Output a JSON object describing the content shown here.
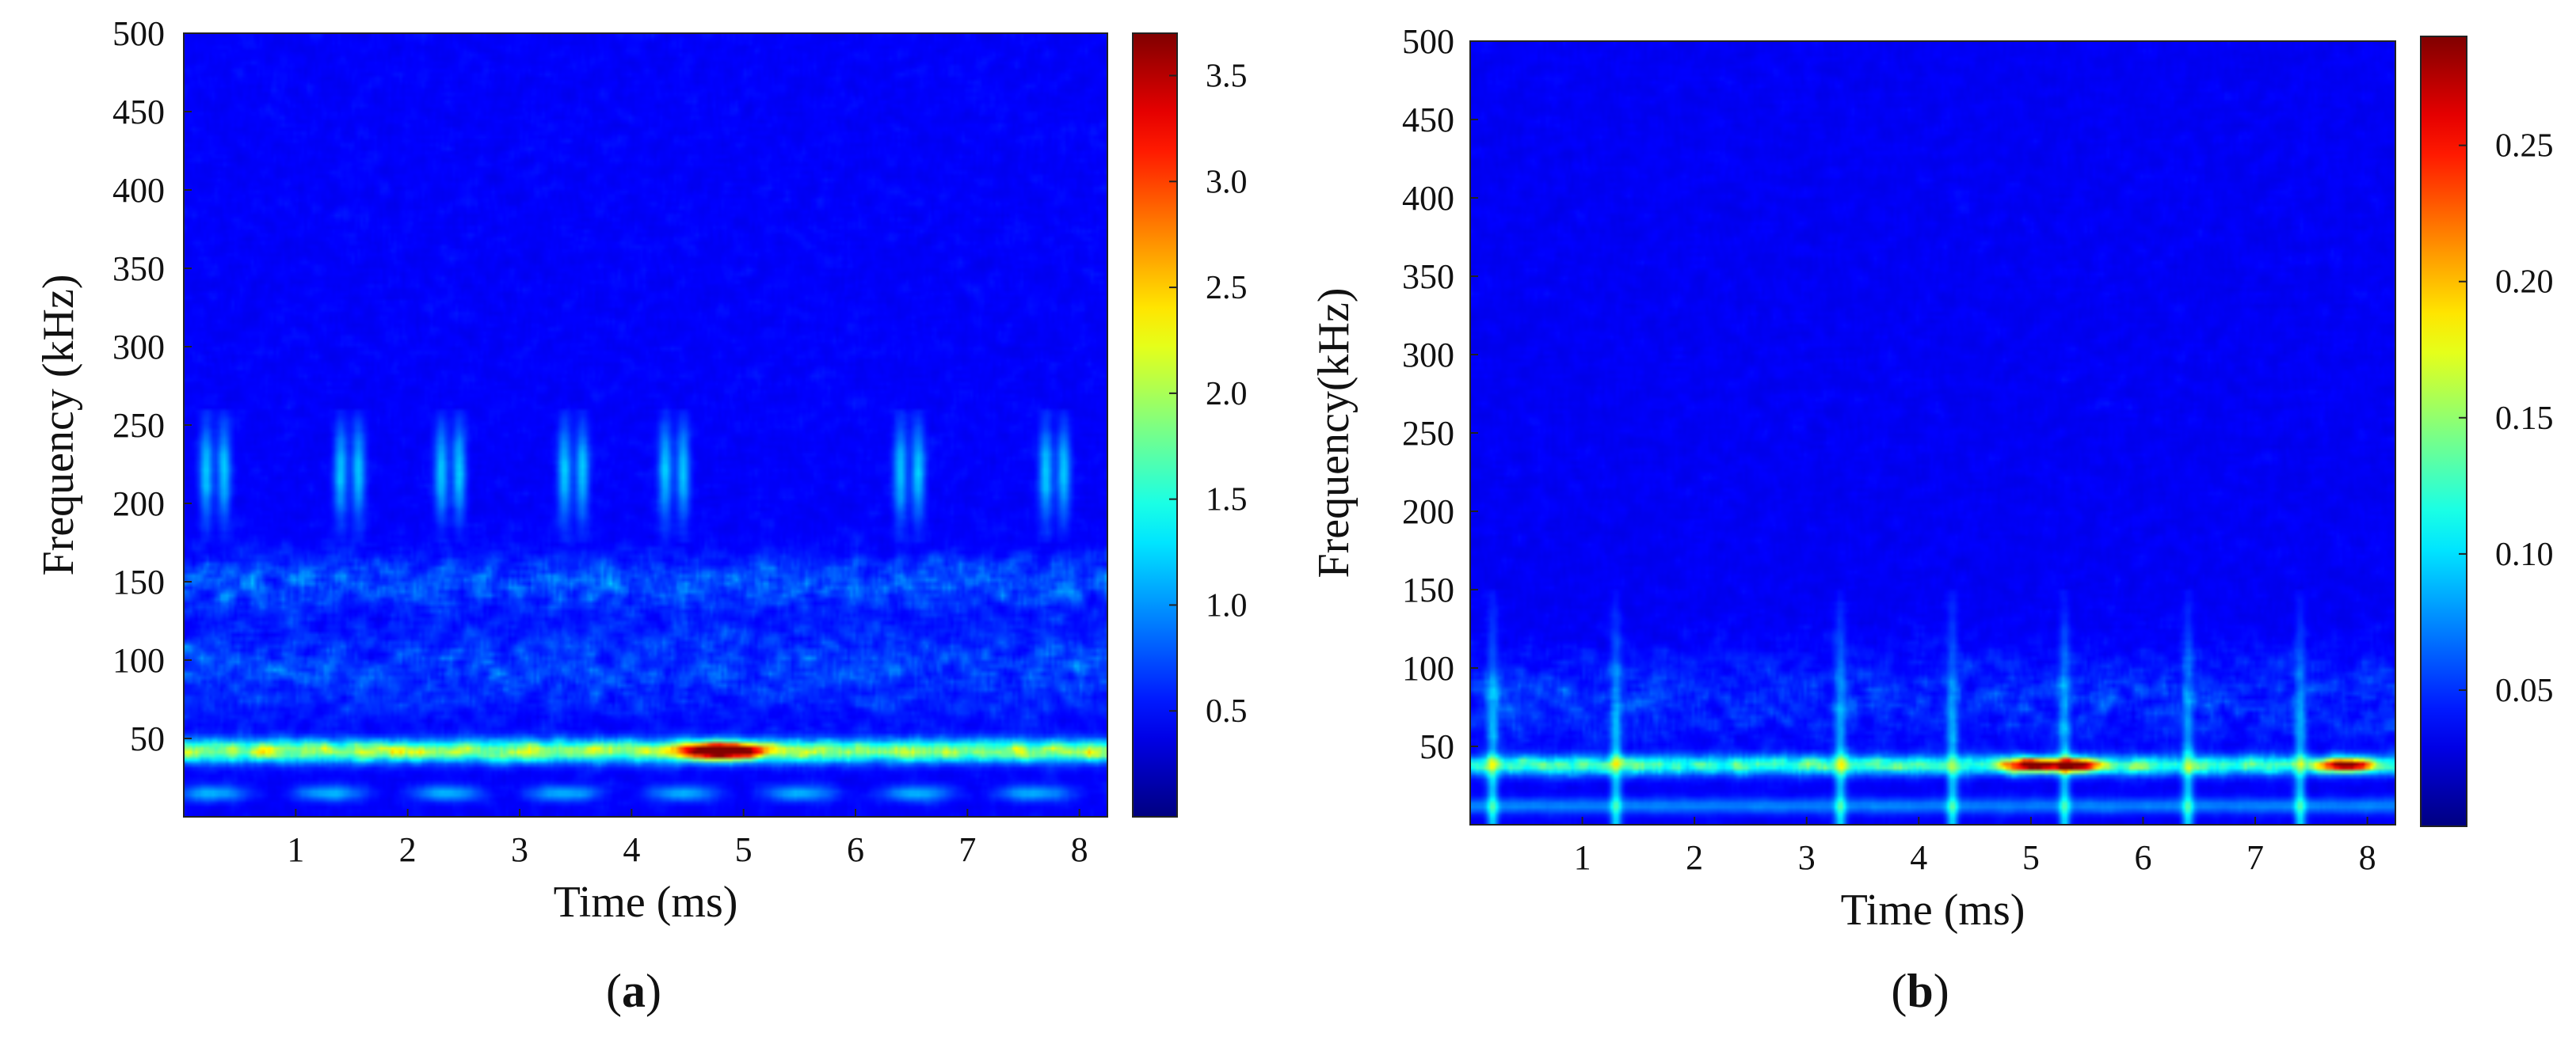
{
  "chart_data": [
    {
      "type": "heatmap",
      "subtype": "spectrogram",
      "panel_label": "a",
      "xlabel": "Time (ms)",
      "ylabel": "Frequency (kHz)",
      "xlim": [
        0,
        8.25
      ],
      "ylim": [
        0,
        500
      ],
      "xticks": [
        1,
        2,
        3,
        4,
        5,
        6,
        7,
        8
      ],
      "yticks": [
        50,
        100,
        150,
        200,
        250,
        300,
        350,
        400,
        450,
        500
      ],
      "colormap": "jet",
      "color_range": [
        0,
        3.7
      ],
      "colorbar_ticks": [
        "0.5",
        "1.0",
        "1.5",
        "2.0",
        "2.5",
        "3.0",
        "3.5"
      ],
      "features": {
        "main_band_khz": 42,
        "main_band_max": 3.7,
        "peak_time_ms": 4.8,
        "low_band_khz": [
          10,
          20
        ],
        "secondary_band_khz": 150,
        "burst_band_khz": [
          190,
          250
        ],
        "burst_times_ms": [
          0.2,
          1.4,
          2.3,
          3.4,
          4.3,
          6.4,
          7.7
        ]
      }
    },
    {
      "type": "heatmap",
      "subtype": "spectrogram",
      "panel_label": "b",
      "xlabel": "Time (ms)",
      "ylabel": "Frequency(kHz)",
      "xlim": [
        0,
        8.25
      ],
      "ylim": [
        0,
        500
      ],
      "xticks": [
        1,
        2,
        3,
        4,
        5,
        6,
        7,
        8
      ],
      "yticks": [
        50,
        100,
        150,
        200,
        250,
        300,
        350,
        400,
        450,
        500
      ],
      "colormap": "jet",
      "color_range": [
        0,
        0.29
      ],
      "colorbar_ticks": [
        "0.05",
        "0.10",
        "0.15",
        "0.20",
        "0.25"
      ],
      "features": {
        "main_band_khz": 38,
        "main_band_max": 0.29,
        "peak_times_ms": [
          5.0,
          5.4,
          7.8
        ],
        "low_band_khz": [
          5,
          15
        ],
        "spike_times_ms": [
          0.2,
          1.3,
          3.3,
          4.3,
          5.3,
          6.4,
          7.4
        ],
        "spike_top_khz": 150
      }
    }
  ]
}
